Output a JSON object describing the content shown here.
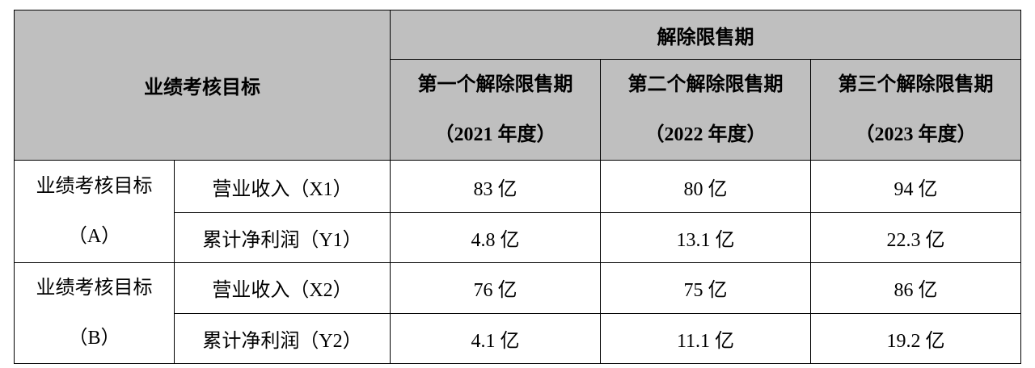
{
  "table": {
    "header": {
      "target": "业绩考核目标",
      "period_group": "解除限售期",
      "periods": [
        {
          "name": "第一个解除限售期",
          "year": "（2021 年度）"
        },
        {
          "name": "第二个解除限售期",
          "year": "（2022 年度）"
        },
        {
          "name": "第三个解除限售期",
          "year": "（2023 年度）"
        }
      ]
    },
    "groups": [
      {
        "label": [
          "业绩考核目标",
          "（A）"
        ],
        "rows": [
          {
            "metric": "营业收入（X1）",
            "values": [
              "83 亿",
              "80 亿",
              "94 亿"
            ]
          },
          {
            "metric": "累计净利润（Y1）",
            "values": [
              "4.8 亿",
              "13.1 亿",
              "22.3 亿"
            ]
          }
        ]
      },
      {
        "label": [
          "业绩考核目标",
          "（B）"
        ],
        "rows": [
          {
            "metric": "营业收入（X2）",
            "values": [
              "76 亿",
              "75 亿",
              "86 亿"
            ]
          },
          {
            "metric": "累计净利润（Y2）",
            "values": [
              "4.1 亿",
              "11.1 亿",
              "19.2 亿"
            ]
          }
        ]
      }
    ]
  }
}
